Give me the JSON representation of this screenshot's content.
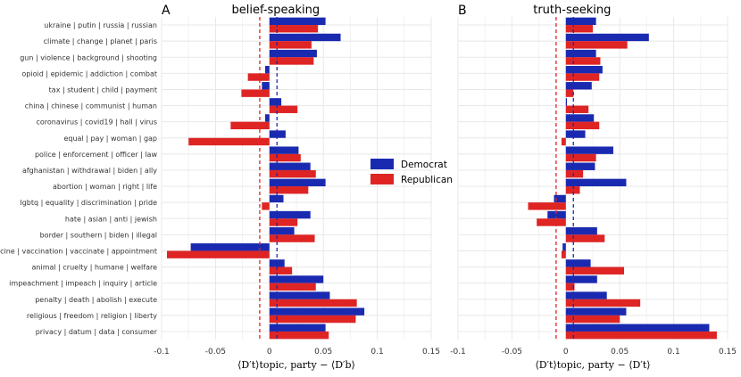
{
  "colors": {
    "democrat": "#1a2ab0",
    "republican": "#df2424",
    "grid": "#e8e8e8"
  },
  "legend": {
    "democrat_label": "Democrat",
    "republican_label": "Republican"
  },
  "xlabel_a": "⟨D′t⟩topic, party − ⟨D′b⟩",
  "xlabel_b": "⟨D′t⟩topic, party − ⟨D′t⟩",
  "chart_data": [
    {
      "type": "bar",
      "panel": "A",
      "title": "belief-speaking",
      "xlim": [
        -0.1,
        0.15
      ],
      "xticks": [
        -0.1,
        -0.05,
        0,
        0.05,
        0.1,
        0.15
      ],
      "xtick_labels": [
        "-0.1",
        "-0.05",
        "0",
        "0.05",
        "0.1",
        "0.15"
      ],
      "ref_lines": {
        "republican": -0.009,
        "democrat": 0.007
      },
      "categories": [
        "ukraine | putin | russia | russian",
        "climate | change | planet | paris",
        "gun | violence | background | shooting",
        "opioid | epidemic | addiction | combat",
        "tax | student | child | payment",
        "china | chinese | communist | human",
        "coronavirus | covid19 | hall | virus",
        "equal | pay | woman | gap",
        "police | enforcement | officer | law",
        "afghanistan | withdrawal | biden | ally",
        "abortion | woman | right | life",
        "lgbtq | equality | discrimination | pride",
        "hate | asian | anti | jewish",
        "border | southern | biden | illegal",
        "vaccine | vaccination | vaccinate | appointment",
        "animal | cruelty | humane | welfare",
        "impeachment | impeach | inquiry | article",
        "penalty | death | abolish | execute",
        "religious | freedom | religion | liberty",
        "privacy | datum | data | consumer"
      ],
      "series": [
        {
          "name": "Democrat",
          "values": [
            0.052,
            0.066,
            0.044,
            -0.004,
            -0.007,
            0.011,
            -0.004,
            0.015,
            0.027,
            0.038,
            0.052,
            0.013,
            0.038,
            0.023,
            -0.073,
            0.014,
            0.05,
            0.056,
            0.088,
            0.052
          ]
        },
        {
          "name": "Republican",
          "values": [
            0.045,
            0.039,
            0.041,
            -0.02,
            -0.026,
            0.026,
            -0.036,
            -0.075,
            0.029,
            0.043,
            0.036,
            -0.007,
            0.026,
            0.042,
            -0.095,
            0.021,
            0.043,
            0.081,
            0.08,
            0.055
          ]
        }
      ]
    },
    {
      "type": "bar",
      "panel": "B",
      "title": "truth-seeking",
      "xlim": [
        -0.1,
        0.15
      ],
      "xticks": [
        -0.1,
        -0.05,
        0,
        0.05,
        0.1,
        0.15
      ],
      "xtick_labels": [
        "-0.1",
        "-0.05",
        "0",
        "0.05",
        "0.1",
        "0.15"
      ],
      "ref_lines": {
        "republican": -0.009,
        "democrat": 0.007
      },
      "categories": [
        "ukraine | putin | russia | russian",
        "climate | change | planet | paris",
        "gun | violence | background | shooting",
        "opioid | epidemic | addiction | combat",
        "tax | student | child | payment",
        "china | chinese | communist | human",
        "coronavirus | covid19 | hall | virus",
        "equal | pay | woman | gap",
        "police | enforcement | officer | law",
        "afghanistan | withdrawal | biden | ally",
        "abortion | woman | right | life",
        "lgbtq | equality | discrimination | pride",
        "hate | asian | anti | jewish",
        "border | southern | biden | illegal",
        "vaccine | vaccination | vaccinate | appointment",
        "animal | cruelty | humane | welfare",
        "impeachment | impeach | inquiry | article",
        "penalty | death | abolish | execute",
        "religious | freedom | religion | liberty",
        "privacy | datum | data | consumer"
      ],
      "series": [
        {
          "name": "Democrat",
          "values": [
            0.028,
            0.077,
            0.028,
            0.034,
            0.024,
            0.001,
            0.026,
            0.018,
            0.044,
            0.027,
            0.056,
            -0.011,
            -0.017,
            0.029,
            -0.003,
            0.023,
            0.029,
            0.038,
            0.056,
            0.133
          ]
        },
        {
          "name": "Republican",
          "values": [
            0.025,
            0.057,
            0.032,
            0.031,
            0.007,
            0.021,
            0.031,
            -0.004,
            0.028,
            0.016,
            0.013,
            -0.035,
            -0.027,
            0.036,
            -0.004,
            0.054,
            0.008,
            0.069,
            0.05,
            0.14
          ]
        }
      ]
    }
  ]
}
